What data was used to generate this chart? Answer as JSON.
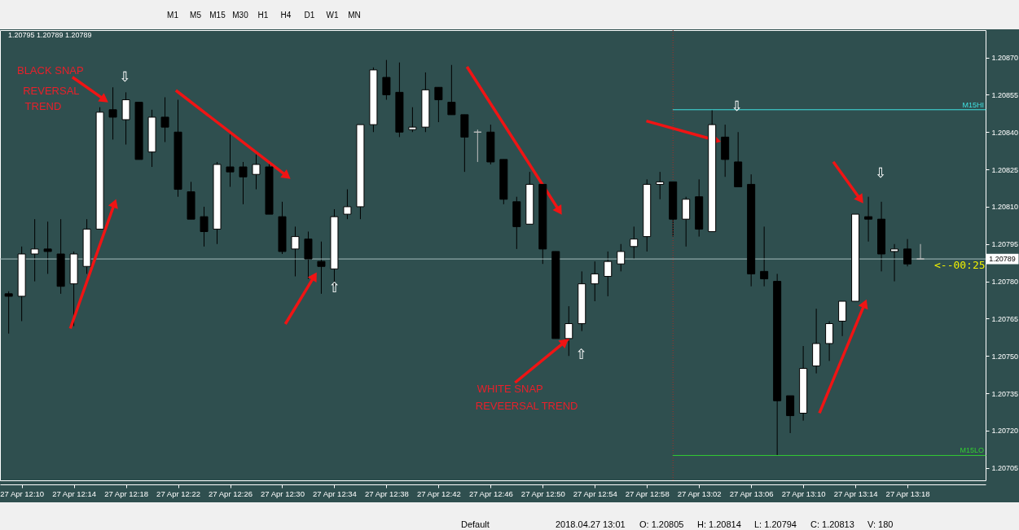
{
  "chart_data": {
    "type": "candlestick",
    "title": "1.20795 1.20789 1.20789",
    "x": [
      "2018-04-27T12:09",
      "2018-04-27T12:10",
      "2018-04-27T12:11",
      "2018-04-27T12:12",
      "2018-04-27T12:13",
      "2018-04-27T12:14",
      "2018-04-27T12:15",
      "2018-04-27T12:16",
      "2018-04-27T12:17",
      "2018-04-27T12:18",
      "2018-04-27T12:19",
      "2018-04-27T12:20",
      "2018-04-27T12:21",
      "2018-04-27T12:22",
      "2018-04-27T12:23",
      "2018-04-27T12:24",
      "2018-04-27T12:25",
      "2018-04-27T12:26",
      "2018-04-27T12:27",
      "2018-04-27T12:28",
      "2018-04-27T12:29",
      "2018-04-27T12:30",
      "2018-04-27T12:31",
      "2018-04-27T12:32",
      "2018-04-27T12:33",
      "2018-04-27T12:34",
      "2018-04-27T12:35",
      "2018-04-27T12:36",
      "2018-04-27T12:37",
      "2018-04-27T12:38",
      "2018-04-27T12:39",
      "2018-04-27T12:40",
      "2018-04-27T12:41",
      "2018-04-27T12:42",
      "2018-04-27T12:43",
      "2018-04-27T12:44",
      "2018-04-27T12:45",
      "2018-04-27T12:46",
      "2018-04-27T12:47",
      "2018-04-27T12:48",
      "2018-04-27T12:49",
      "2018-04-27T12:50",
      "2018-04-27T12:51",
      "2018-04-27T12:52",
      "2018-04-27T12:53",
      "2018-04-27T12:54",
      "2018-04-27T12:55",
      "2018-04-27T12:56",
      "2018-04-27T12:57",
      "2018-04-27T12:58",
      "2018-04-27T12:59",
      "2018-04-27T13:00",
      "2018-04-27T13:01",
      "2018-04-27T13:02",
      "2018-04-27T13:03",
      "2018-04-27T13:04",
      "2018-04-27T13:05",
      "2018-04-27T13:06",
      "2018-04-27T13:07",
      "2018-04-27T13:08",
      "2018-04-27T13:09",
      "2018-04-27T13:10",
      "2018-04-27T13:11",
      "2018-04-27T13:12",
      "2018-04-27T13:13",
      "2018-04-27T13:14",
      "2018-04-27T13:15",
      "2018-04-27T13:16",
      "2018-04-27T13:17",
      "2018-04-27T13:18",
      "2018-04-27T13:19"
    ],
    "ohlc": [
      [
        1.20775,
        1.20776,
        1.20759,
        1.20774
      ],
      [
        1.20774,
        1.20794,
        1.20764,
        1.20791
      ],
      [
        1.20791,
        1.20805,
        1.2078,
        1.20793
      ],
      [
        1.20793,
        1.20804,
        1.20783,
        1.20792
      ],
      [
        1.20791,
        1.20805,
        1.20775,
        1.20778
      ],
      [
        1.20779,
        1.20792,
        1.20762,
        1.20791
      ],
      [
        1.20786,
        1.20805,
        1.20783,
        1.20801
      ],
      [
        1.20801,
        1.2085,
        1.20801,
        1.20848
      ],
      [
        1.20849,
        1.20858,
        1.20837,
        1.20846
      ],
      [
        1.20845,
        1.20856,
        1.20835,
        1.20853
      ],
      [
        1.20852,
        1.20852,
        1.20829,
        1.20829
      ],
      [
        1.20832,
        1.20849,
        1.20826,
        1.20846
      ],
      [
        1.20846,
        1.20854,
        1.20836,
        1.20842
      ],
      [
        1.2084,
        1.20853,
        1.20814,
        1.20817
      ],
      [
        1.20816,
        1.2082,
        1.20805,
        1.20805
      ],
      [
        1.20806,
        1.2081,
        1.20794,
        1.208
      ],
      [
        1.20801,
        1.20828,
        1.20795,
        1.20827
      ],
      [
        1.20826,
        1.20839,
        1.20818,
        1.20824
      ],
      [
        1.20826,
        1.20828,
        1.20811,
        1.20822
      ],
      [
        1.20823,
        1.20831,
        1.20817,
        1.20827
      ],
      [
        1.20826,
        1.20828,
        1.20807,
        1.20807
      ],
      [
        1.20806,
        1.20812,
        1.20791,
        1.20792
      ],
      [
        1.20793,
        1.20802,
        1.20782,
        1.20798
      ],
      [
        1.20797,
        1.208,
        1.20781,
        1.20789
      ],
      [
        1.20788,
        1.20796,
        1.20775,
        1.20786
      ],
      [
        1.20785,
        1.20809,
        1.20778,
        1.20806
      ],
      [
        1.20807,
        1.20817,
        1.20805,
        1.2081
      ],
      [
        1.2081,
        1.20843,
        1.20805,
        1.20843
      ],
      [
        1.20843,
        1.20866,
        1.2084,
        1.20865
      ],
      [
        1.20862,
        1.20869,
        1.20853,
        1.20855
      ],
      [
        1.20856,
        1.20868,
        1.20838,
        1.2084
      ],
      [
        1.20841,
        1.2085,
        1.2084,
        1.20842
      ],
      [
        1.20842,
        1.20864,
        1.2084,
        1.20857
      ],
      [
        1.20858,
        1.20858,
        1.20844,
        1.20853
      ],
      [
        1.20852,
        1.20867,
        1.20847,
        1.20847
      ],
      [
        1.20847,
        1.20847,
        1.20824,
        1.20838
      ],
      [
        1.2084,
        1.20841,
        1.20828,
        1.2084
      ],
      [
        1.2084,
        1.20843,
        1.20827,
        1.20828
      ],
      [
        1.20829,
        1.20829,
        1.20811,
        1.20813
      ],
      [
        1.20812,
        1.20814,
        1.20793,
        1.20802
      ],
      [
        1.20803,
        1.20824,
        1.20803,
        1.20819
      ],
      [
        1.20819,
        1.20819,
        1.20787,
        1.20793
      ],
      [
        1.20792,
        1.20792,
        1.20757,
        1.20757
      ],
      [
        1.20757,
        1.2077,
        1.2075,
        1.20763
      ],
      [
        1.20763,
        1.20784,
        1.2076,
        1.20779
      ],
      [
        1.20779,
        1.20788,
        1.20772,
        1.20783
      ],
      [
        1.20782,
        1.20792,
        1.20774,
        1.20788
      ],
      [
        1.20787,
        1.20795,
        1.20784,
        1.20792
      ],
      [
        1.20794,
        1.20802,
        1.20789,
        1.20797
      ],
      [
        1.20798,
        1.20821,
        1.20792,
        1.20819
      ],
      [
        1.20819,
        1.20824,
        1.20813,
        1.2082
      ],
      [
        1.2082,
        1.2082,
        1.20798,
        1.20805
      ],
      [
        1.20805,
        1.20814,
        1.20794,
        1.20813
      ],
      [
        1.20814,
        1.20821,
        1.20798,
        1.20801
      ],
      [
        1.208,
        1.20849,
        1.208,
        1.20843
      ],
      [
        1.20838,
        1.20843,
        1.20822,
        1.20829
      ],
      [
        1.20828,
        1.2084,
        1.20818,
        1.20818
      ],
      [
        1.20819,
        1.20823,
        1.20778,
        1.20783
      ],
      [
        1.20784,
        1.20802,
        1.20778,
        1.20781
      ],
      [
        1.2078,
        1.20783,
        1.2071,
        1.20732
      ],
      [
        1.20734,
        1.20734,
        1.20719,
        1.20726
      ],
      [
        1.20727,
        1.20754,
        1.20724,
        1.20745
      ],
      [
        1.20746,
        1.20769,
        1.20743,
        1.20755
      ],
      [
        1.20755,
        1.20764,
        1.20748,
        1.20763
      ],
      [
        1.20764,
        1.20772,
        1.20758,
        1.20772
      ],
      [
        1.20772,
        1.20807,
        1.20772,
        1.20807
      ],
      [
        1.20806,
        1.20814,
        1.20796,
        1.20805
      ],
      [
        1.20805,
        1.20812,
        1.20784,
        1.20791
      ],
      [
        1.20792,
        1.20795,
        1.2078,
        1.20793
      ],
      [
        1.20793,
        1.20797,
        1.20786,
        1.20787
      ],
      [
        1.20789,
        1.20795,
        1.20789,
        1.20789
      ]
    ],
    "color": "#000000",
    "colors": [
      "#000000",
      "#ffffff",
      "#ffffff",
      "#000000",
      "#000000",
      "#ffffff",
      "#ffffff",
      "#ffffff",
      "#000000",
      "#ffffff",
      "#000000",
      "#ffffff",
      "#000000",
      "#000000",
      "#000000",
      "#000000",
      "#ffffff",
      "#000000",
      "#000000",
      "#ffffff",
      "#000000",
      "#000000",
      "#ffffff",
      "#000000",
      "#000000",
      "#ffffff",
      "#ffffff",
      "#ffffff",
      "#ffffff",
      "#000000",
      "#000000",
      "#ffffff",
      "#ffffff",
      "#000000",
      "#000000",
      "#000000",
      "#c0c0c0",
      "#000000",
      "#000000",
      "#000000",
      "#ffffff",
      "#000000",
      "#000000",
      "#ffffff",
      "#ffffff",
      "#ffffff",
      "#ffffff",
      "#ffffff",
      "#ffffff",
      "#ffffff",
      "#ffffff",
      "#000000",
      "#ffffff",
      "#000000",
      "#ffffff",
      "#000000",
      "#000000",
      "#000000",
      "#000000",
      "#000000",
      "#000000",
      "#ffffff",
      "#ffffff",
      "#ffffff",
      "#ffffff",
      "#ffffff",
      "#000000",
      "#000000",
      "#ffffff",
      "#000000",
      "#c0c0c0"
    ],
    "series": [
      {
        "name": "M15HI",
        "type": "line",
        "color": "#40e0e0",
        "x": [
          "2018-04-27T13:00",
          "2018-04-27T13:24"
        ],
        "values": [
          1.20849,
          1.20849
        ]
      },
      {
        "name": "M15LO",
        "type": "line",
        "color": "#32cd32",
        "x": [
          "2018-04-27T13:00",
          "2018-04-27T13:24"
        ],
        "values": [
          1.2071,
          1.2071
        ]
      }
    ],
    "ref_lines": [
      {
        "axis": "y",
        "value": 1.20789,
        "label": "1.20789",
        "color": "#a8bcbc"
      },
      {
        "axis": "x",
        "value": "2018-04-27T13:00",
        "color": "#a0302a",
        "line_style": "dotted"
      }
    ],
    "xlim": [
      "2018-04-27T12:08:20",
      "2018-04-27T13:24"
    ],
    "ylim": [
      1.207,
      1.20881
    ],
    "xticks": [
      {
        "value": "2018-04-27T12:10",
        "label": "27 Apr 12:10"
      },
      {
        "value": "2018-04-27T12:14",
        "label": "27 Apr 12:14"
      },
      {
        "value": "2018-04-27T12:18",
        "label": "27 Apr 12:18"
      },
      {
        "value": "2018-04-27T12:22",
        "label": "27 Apr 12:22"
      },
      {
        "value": "2018-04-27T12:26",
        "label": "27 Apr 12:26"
      },
      {
        "value": "2018-04-27T12:30",
        "label": "27 Apr 12:30"
      },
      {
        "value": "2018-04-27T12:34",
        "label": "27 Apr 12:34"
      },
      {
        "value": "2018-04-27T12:38",
        "label": "27 Apr 12:38"
      },
      {
        "value": "2018-04-27T12:42",
        "label": "27 Apr 12:42"
      },
      {
        "value": "2018-04-27T12:46",
        "label": "27 Apr 12:46"
      },
      {
        "value": "2018-04-27T12:50",
        "label": "27 Apr 12:50"
      },
      {
        "value": "2018-04-27T12:54",
        "label": "27 Apr 12:54"
      },
      {
        "value": "2018-04-27T12:58",
        "label": "27 Apr 12:58"
      },
      {
        "value": "2018-04-27T13:02",
        "label": "27 Apr 13:02"
      },
      {
        "value": "2018-04-27T13:06",
        "label": "27 Apr 13:06"
      },
      {
        "value": "2018-04-27T13:10",
        "label": "27 Apr 13:10"
      },
      {
        "value": "2018-04-27T13:14",
        "label": "27 Apr 13:14"
      },
      {
        "value": "2018-04-27T13:18",
        "label": "27 Apr 13:18"
      }
    ],
    "yticks": [
      {
        "value": 1.20705,
        "label": "1.20705"
      },
      {
        "value": 1.2072,
        "label": "1.20720"
      },
      {
        "value": 1.20735,
        "label": "1.20735"
      },
      {
        "value": 1.2075,
        "label": "1.20750"
      },
      {
        "value": 1.20765,
        "label": "1.20765"
      },
      {
        "value": 1.2078,
        "label": "1.20780"
      },
      {
        "value": 1.20795,
        "label": "1.20795"
      },
      {
        "value": 1.2081,
        "label": "1.20810"
      },
      {
        "value": 1.20825,
        "label": "1.20825"
      },
      {
        "value": 1.2084,
        "label": "1.20840"
      },
      {
        "value": 1.20855,
        "label": "1.20855"
      },
      {
        "value": 1.2087,
        "label": "1.20870"
      }
    ],
    "grid": false,
    "annotations": [
      "BLACK SNAP",
      "REVERSAL",
      "TREND",
      {
        "text": "WHITE SNAP",
        "x": "2018-04-27T12:52",
        "y": 1.20757
      },
      "REVEERSAL TREND",
      "⇩",
      "⇧",
      "⇧",
      "⇩",
      "⇩",
      "<--00:25",
      "M1",
      "M5",
      "M15",
      "M30",
      "H1",
      "H4",
      "D1",
      "W1",
      "MN",
      "Default",
      "2018.04.27 13:01",
      "O: 1.20805",
      "H: 1.20814",
      "L: 1.20794",
      "C: 1.20813",
      "V: 180"
    ]
  }
}
